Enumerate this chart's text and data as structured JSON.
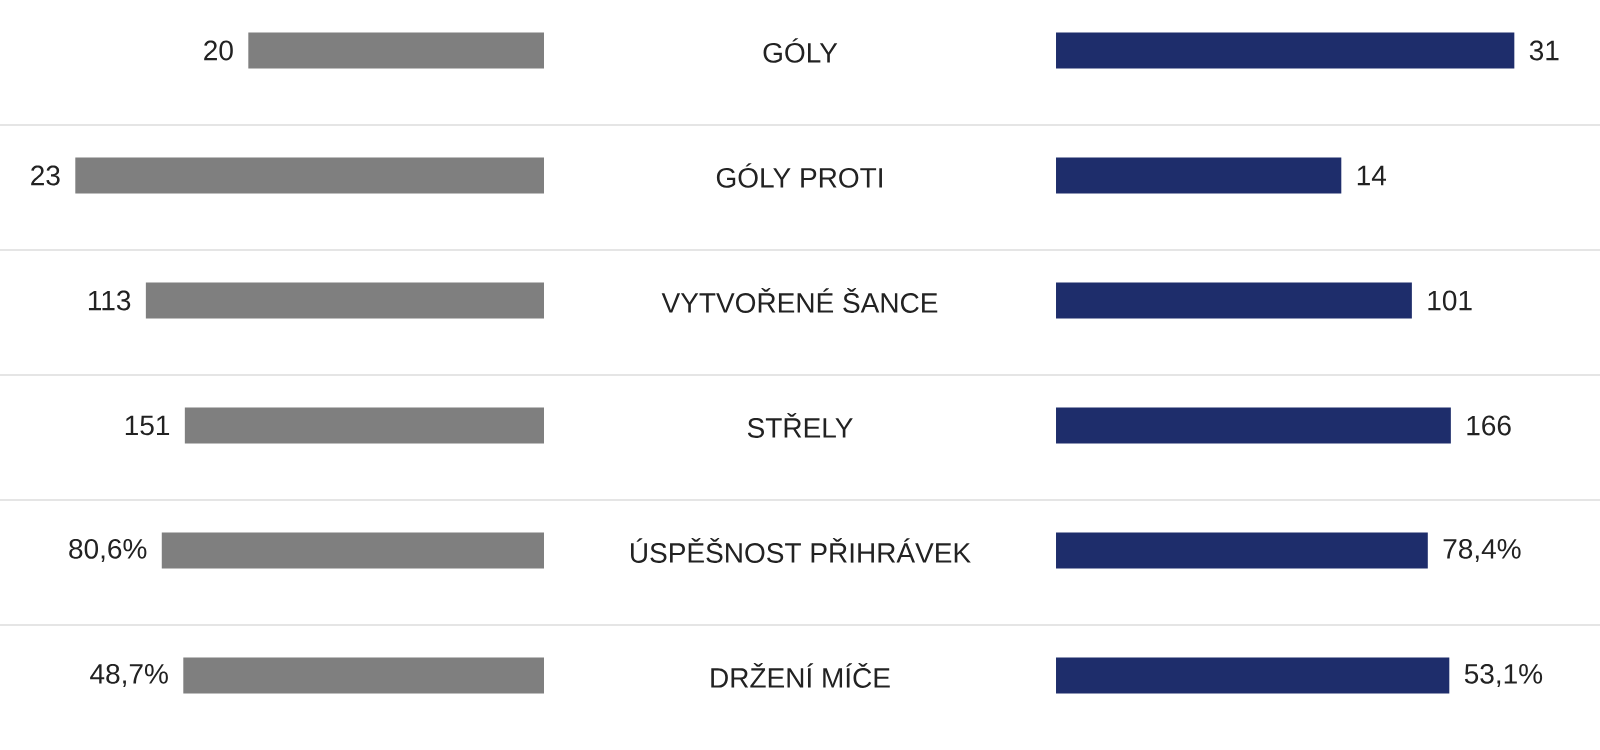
{
  "chart_data": {
    "type": "other",
    "categories": [
      "GÓLY",
      "GÓLY PROTI",
      "VYTVOŘENÉ ŠANCE",
      "STŘELY",
      "ÚSPĚŠNOST PŘIHRÁVEK",
      "DRŽENÍ MÍČE"
    ],
    "series": [
      {
        "color": "#7f7f7f",
        "values": [
          20,
          23,
          113,
          151,
          80.6,
          48.7
        ],
        "value_labels": [
          "20",
          "23",
          "113",
          "151",
          "80,6%",
          "48,7%"
        ]
      },
      {
        "color": "#1e2d6b",
        "values": [
          31,
          14,
          101,
          166,
          78.4,
          53.1
        ],
        "value_labels": [
          "31",
          "14",
          "101",
          "166",
          "78,4%",
          "53,1%"
        ]
      }
    ]
  }
}
